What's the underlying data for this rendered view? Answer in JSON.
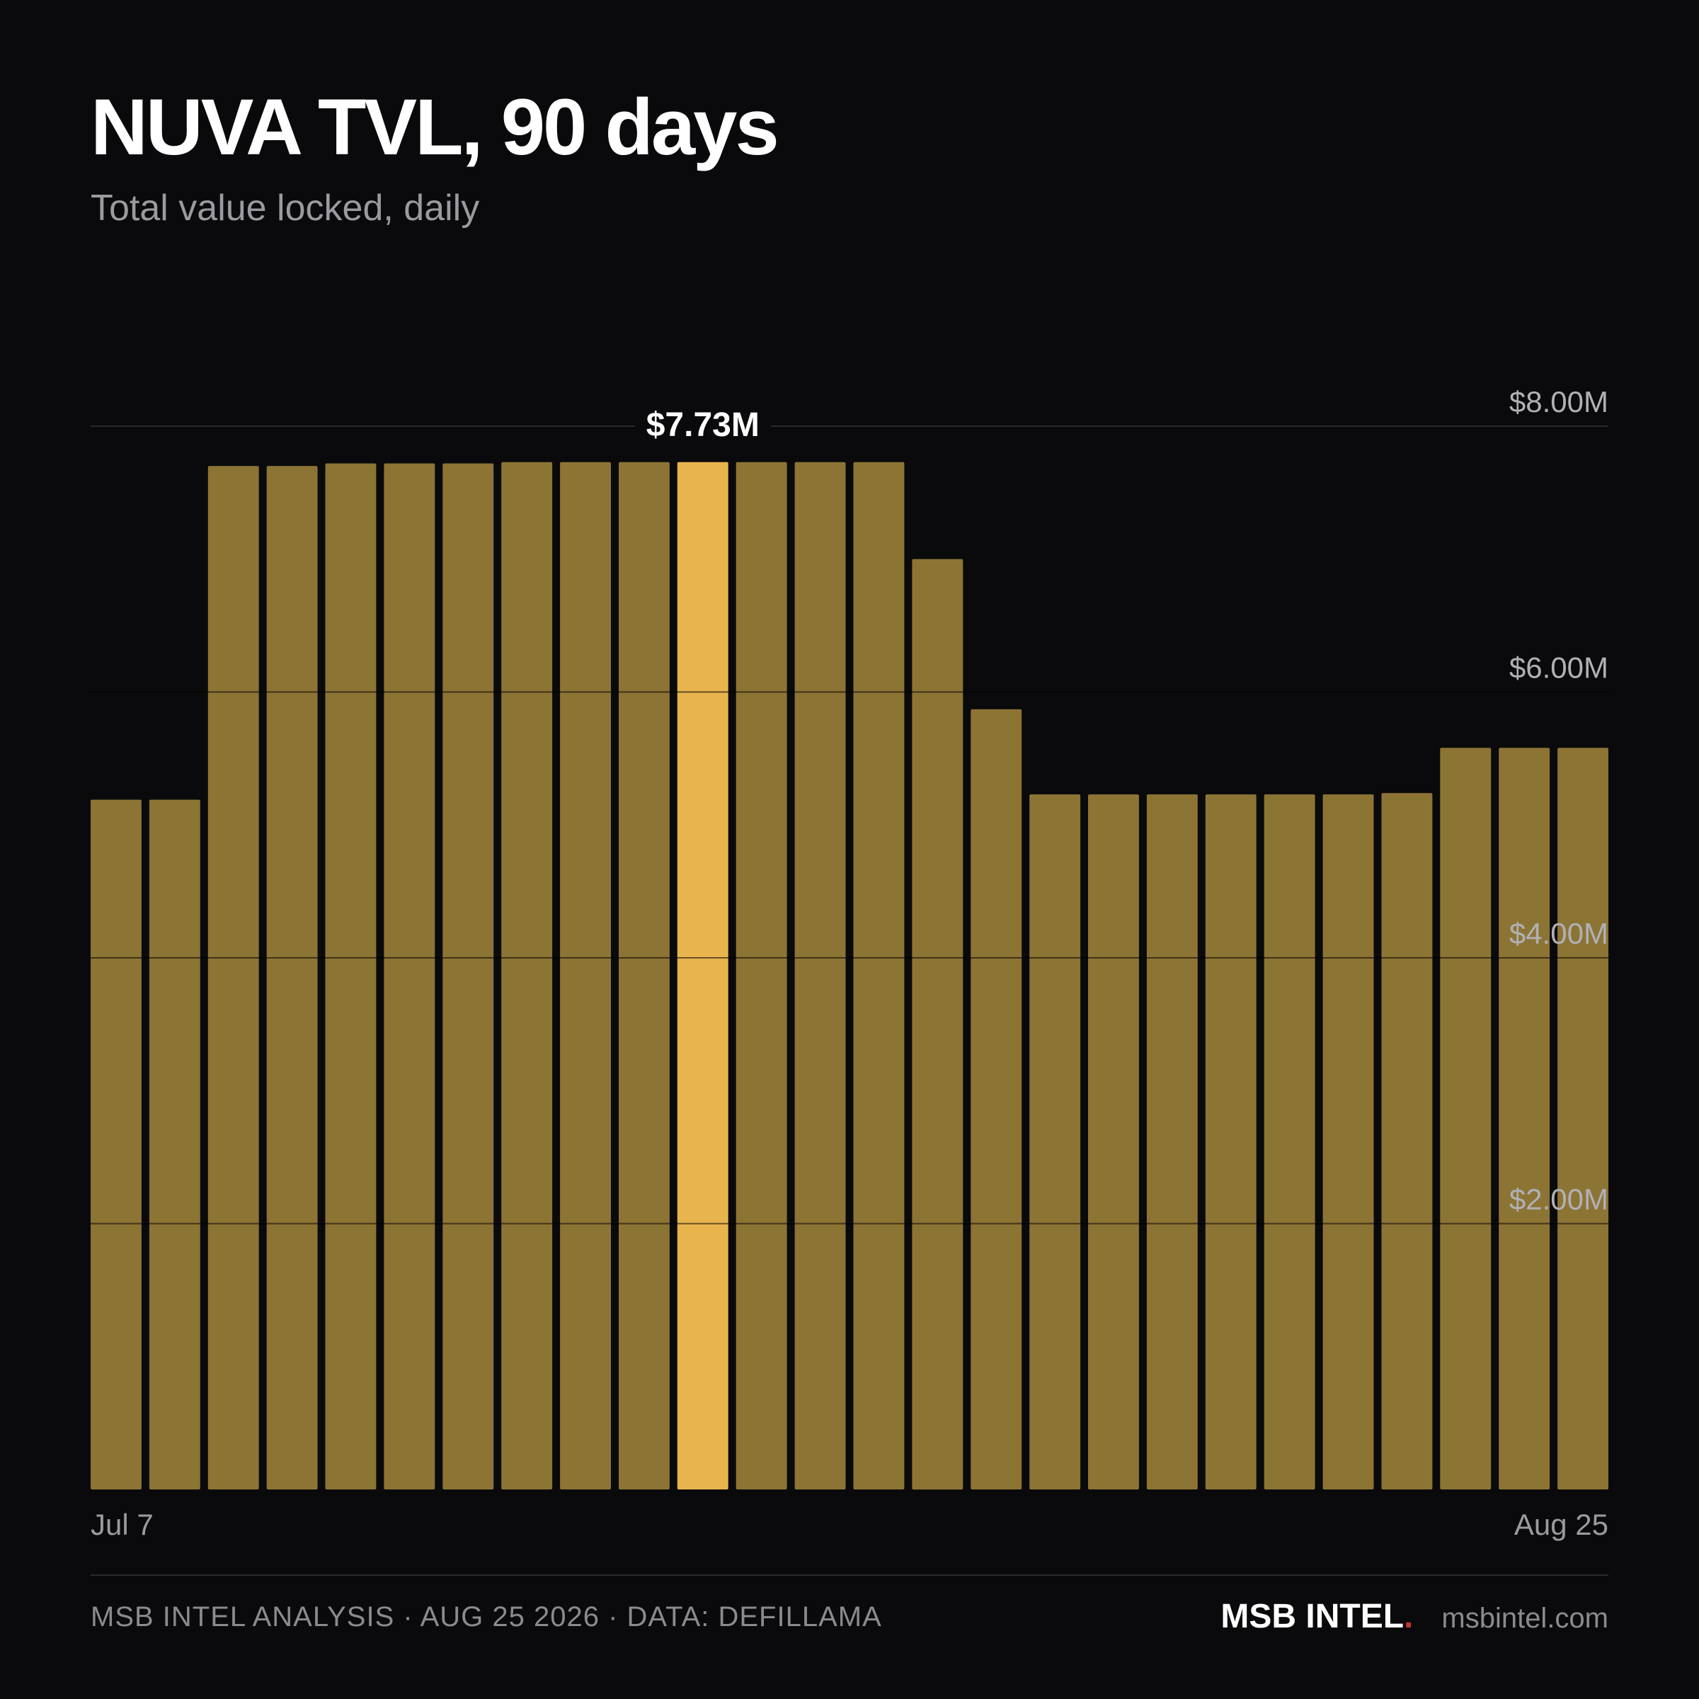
{
  "colors": {
    "background": "#0a0a0c",
    "bar": "#8c7434",
    "bar_highlight": "#e8b44e",
    "gridline": "#2a2a2e",
    "accent_dot": "#c0392b"
  },
  "chart_data": {
    "type": "bar",
    "title": "NUVA TVL, 90 days",
    "subtitle": "Total value locked, daily",
    "xlabel": "",
    "ylabel": "",
    "x_tick_labels": [
      "Jul 7",
      "Aug 25"
    ],
    "y_ticks": [
      {
        "value": 2000000,
        "label": "$2.00M"
      },
      {
        "value": 4000000,
        "label": "$4.00M"
      },
      {
        "value": 6000000,
        "label": "$6.00M"
      },
      {
        "value": 8000000,
        "label": "$8.00M"
      }
    ],
    "ylim": [
      0,
      8000000
    ],
    "grid": true,
    "values": [
      5190000,
      5190000,
      7700000,
      7700000,
      7720000,
      7720000,
      7720000,
      7730000,
      7730000,
      7730000,
      7730000,
      7730000,
      7730000,
      7730000,
      7000000,
      5870000,
      5230000,
      5230000,
      5230000,
      5230000,
      5230000,
      5230000,
      5240000,
      5580000,
      5580000,
      5580000
    ],
    "highlight_index": 10,
    "annotation": "$7.73M"
  },
  "footer": {
    "source": "MSB INTEL ANALYSIS · AUG 25 2026 · DATA: DEFILLAMA",
    "brand": "MSB INTEL",
    "brand_dot": ".",
    "url": "msbintel.com"
  }
}
